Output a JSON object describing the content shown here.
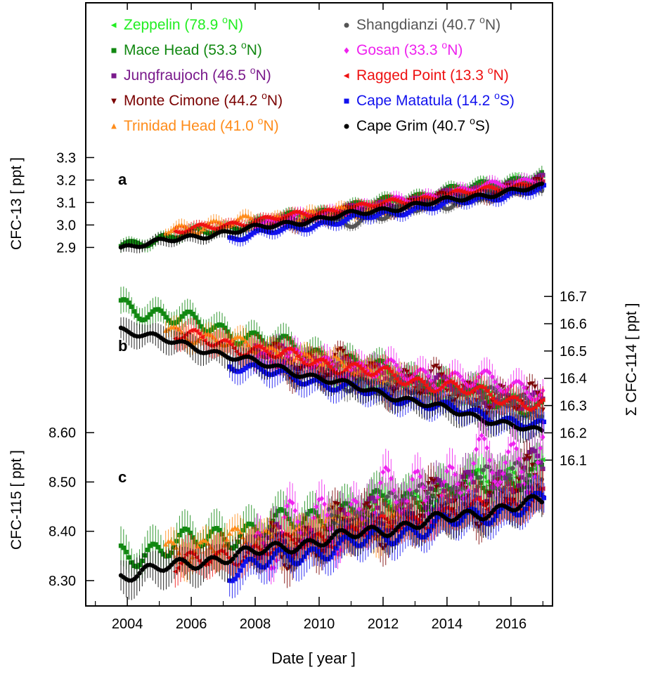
{
  "figure": {
    "xlabel": "Date [ year ]",
    "x_ticks": [
      2004,
      2006,
      2008,
      2010,
      2012,
      2014,
      2016
    ],
    "xlim": [
      2002.7,
      2017.3
    ]
  },
  "legend": {
    "items": [
      {
        "label": "Zeppelin (78.9 ",
        "deg": "o",
        "hemi": "N)",
        "color": "#22ee22",
        "marker": "triangle-left"
      },
      {
        "label": "Mace Head (53.3 ",
        "deg": "o",
        "hemi": "N)",
        "color": "#118811",
        "marker": "square"
      },
      {
        "label": "Jungfraujoch (46.5 ",
        "deg": "o",
        "hemi": "N)",
        "color": "#7a1a8c",
        "marker": "square"
      },
      {
        "label": "Monte Cimone (44.2 ",
        "deg": "o",
        "hemi": "N)",
        "color": "#7a0000",
        "marker": "triangle-down"
      },
      {
        "label": "Trinidad Head (41.0 ",
        "deg": "o",
        "hemi": "N)",
        "color": "#ff8c1a",
        "marker": "triangle-up"
      },
      {
        "label": "Shangdianzi (40.7 ",
        "deg": "o",
        "hemi": "N)",
        "color": "#555555",
        "marker": "circle"
      },
      {
        "label": "Gosan (33.3 ",
        "deg": "o",
        "hemi": "N)",
        "color": "#ee22ee",
        "marker": "diamond"
      },
      {
        "label": "Ragged Point (13.3 ",
        "deg": "o",
        "hemi": "N)",
        "color": "#ee1111",
        "marker": "triangle-left"
      },
      {
        "label": "Cape Matatula (14.2 ",
        "deg": "o",
        "hemi": "S)",
        "color": "#1111ee",
        "marker": "square"
      },
      {
        "label": "Cape Grim (40.7 ",
        "deg": "o",
        "hemi": "S)",
        "color": "#000000",
        "marker": "circle"
      }
    ]
  },
  "chart_data": [
    {
      "panel": "a",
      "type": "scatter",
      "ylabel": "CFC-13  [ ppt ]",
      "y_axis_side": "left",
      "y_ticks": [
        "3.3",
        "3.2",
        "3.1",
        "3.0",
        "2.9"
      ],
      "ylim": [
        2.87,
        3.32
      ],
      "series": [
        {
          "name": "Zeppelin (78.9 oN)",
          "start": 2010.5,
          "end": 2017.0,
          "values": [
            3.04,
            3.22
          ],
          "wave": 0.012
        },
        {
          "name": "Mace Head (53.3 oN)",
          "start": 2003.8,
          "end": 2017.0,
          "values": [
            2.91,
            3.22
          ],
          "wave": 0.015
        },
        {
          "name": "Jungfraujoch (46.5 oN)",
          "start": 2008.0,
          "end": 2017.0,
          "values": [
            3.0,
            3.2
          ],
          "wave": 0.015
        },
        {
          "name": "Monte Cimone (44.2 oN)",
          "start": 2008.5,
          "end": 2017.0,
          "values": [
            3.0,
            3.18
          ],
          "wave": 0.02
        },
        {
          "name": "Trinidad Head (41.0 oN)",
          "start": 2005.2,
          "end": 2012.5,
          "values": [
            2.98,
            3.08
          ],
          "wave": 0.02
        },
        {
          "name": "Shangdianzi (40.7 oN)",
          "start": 2010.3,
          "end": 2017.0,
          "values": [
            3.0,
            3.18
          ],
          "wave": 0.02
        },
        {
          "name": "Gosan (33.3 oN)",
          "start": 2008.0,
          "end": 2017.0,
          "values": [
            3.0,
            3.21
          ],
          "wave": 0.015
        },
        {
          "name": "Ragged Point (13.3 oN)",
          "start": 2005.5,
          "end": 2017.0,
          "values": [
            2.97,
            3.19
          ],
          "wave": 0.012
        },
        {
          "name": "Cape Matatula (14.2 oS)",
          "start": 2007.2,
          "end": 2017.0,
          "values": [
            2.94,
            3.16
          ],
          "wave": 0.012
        },
        {
          "name": "Cape Grim (40.7 oS)",
          "start": 2003.8,
          "end": 2017.0,
          "values": [
            2.9,
            3.17
          ],
          "wave": 0.01
        }
      ]
    },
    {
      "panel": "b",
      "type": "scatter",
      "ylabel": "Σ CFC-114  [ ppt ]",
      "y_axis_side": "right",
      "y_ticks": [
        "16.7",
        "16.6",
        "16.5",
        "16.4",
        "16.3",
        "16.2",
        "16.1"
      ],
      "ylim": [
        16.075,
        16.77
      ],
      "series": [
        {
          "name": "Zeppelin (78.9 oN)",
          "start": 2010.5,
          "end": 2017.0,
          "values": [
            16.42,
            16.31
          ],
          "wave": 0.02
        },
        {
          "name": "Mace Head (53.3 oN)",
          "start": 2003.8,
          "end": 2017.0,
          "values": [
            16.67,
            16.28
          ],
          "wave": 0.025
        },
        {
          "name": "Jungfraujoch (46.5 oN)",
          "start": 2008.0,
          "end": 2017.0,
          "values": [
            16.5,
            16.3
          ],
          "wave": 0.03
        },
        {
          "name": "Monte Cimone (44.2 oN)",
          "start": 2008.5,
          "end": 2017.0,
          "values": [
            16.48,
            16.3
          ],
          "wave": 0.05
        },
        {
          "name": "Trinidad Head (41.0 oN)",
          "start": 2005.2,
          "end": 2012.5,
          "values": [
            16.58,
            16.4
          ],
          "wave": 0.02
        },
        {
          "name": "Shangdianzi (40.7 oN)",
          "start": 2010.3,
          "end": 2017.0,
          "values": [
            16.4,
            16.3
          ],
          "wave": 0.03
        },
        {
          "name": "Gosan (33.3 oN)",
          "start": 2008.0,
          "end": 2017.0,
          "values": [
            16.48,
            16.36
          ],
          "wave": 0.03
        },
        {
          "name": "Ragged Point (13.3 oN)",
          "start": 2005.5,
          "end": 2017.0,
          "values": [
            16.56,
            16.3
          ],
          "wave": 0.02
        },
        {
          "name": "Cape Matatula (14.2 oS)",
          "start": 2007.2,
          "end": 2017.0,
          "values": [
            16.45,
            16.22
          ],
          "wave": 0.015
        },
        {
          "name": "Cape Grim (40.7 oS)",
          "start": 2003.8,
          "end": 2017.0,
          "values": [
            16.58,
            16.2
          ],
          "wave": 0.01
        }
      ]
    },
    {
      "panel": "c",
      "type": "scatter",
      "ylabel": "CFC-115  [ ppt ]",
      "y_axis_side": "left",
      "y_ticks": [
        "8.60",
        "8.50",
        "8.40",
        "8.30"
      ],
      "ylim": [
        8.25,
        8.68
      ],
      "series": [
        {
          "name": "Zeppelin (78.9 oN)",
          "start": 2010.5,
          "end": 2017.0,
          "values": [
            8.42,
            8.53
          ],
          "wave": 0.02
        },
        {
          "name": "Mace Head (53.3 oN)",
          "start": 2003.8,
          "end": 2017.0,
          "values": [
            8.35,
            8.52
          ],
          "wave": 0.02
        },
        {
          "name": "Jungfraujoch (46.5 oN)",
          "start": 2008.0,
          "end": 2017.0,
          "values": [
            8.36,
            8.53
          ],
          "wave": 0.03
        },
        {
          "name": "Monte Cimone (44.2 oN)",
          "start": 2008.5,
          "end": 2017.0,
          "values": [
            8.37,
            8.5
          ],
          "wave": 0.04
        },
        {
          "name": "Trinidad Head (41.0 oN)",
          "start": 2005.2,
          "end": 2012.5,
          "values": [
            8.36,
            8.42
          ],
          "wave": 0.02
        },
        {
          "name": "Shangdianzi (40.7 oN)",
          "start": 2010.3,
          "end": 2017.0,
          "values": [
            8.41,
            8.52
          ],
          "wave": 0.03
        },
        {
          "name": "Gosan (33.3 oN)",
          "start": 2008.0,
          "end": 2017.0,
          "values": [
            8.37,
            8.56
          ],
          "wave": 0.05
        },
        {
          "name": "Ragged Point (13.3 oN)",
          "start": 2005.5,
          "end": 2017.0,
          "values": [
            8.33,
            8.47
          ],
          "wave": 0.015
        },
        {
          "name": "Cape Matatula (14.2 oS)",
          "start": 2007.2,
          "end": 2017.0,
          "values": [
            8.32,
            8.46
          ],
          "wave": 0.015
        },
        {
          "name": "Cape Grim (40.7 oS)",
          "start": 2003.8,
          "end": 2017.0,
          "values": [
            8.31,
            8.46
          ],
          "wave": 0.01
        }
      ]
    }
  ]
}
